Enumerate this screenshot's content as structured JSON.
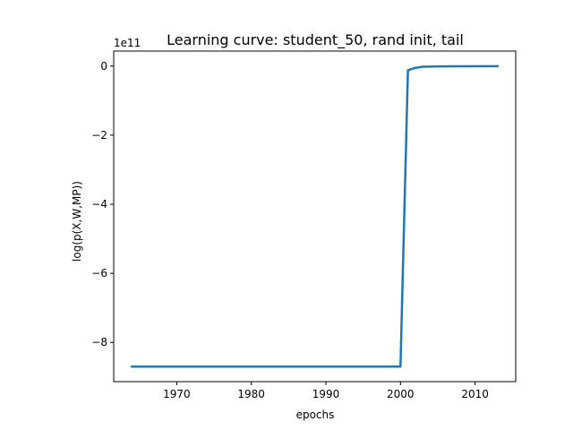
{
  "chart_data": {
    "type": "line",
    "title": "Learning curve: student_50, rand init, tail",
    "xlabel": "epochs",
    "ylabel": "log(p(X,W,MP))",
    "y_offset_label": "1e11",
    "xlim": [
      1961.55,
      2015.45
    ],
    "ylim": [
      -9.135,
      0.435
    ],
    "x_ticks": [
      1970,
      1980,
      1990,
      2000,
      2010
    ],
    "y_ticks": [
      0,
      -2,
      -4,
      -6,
      -8
    ],
    "y_tick_labels": [
      "0",
      "−2",
      "−4",
      "−6",
      "−8"
    ],
    "grid": false,
    "line_color": "#1f77b4",
    "series": [
      {
        "x": [
          1964,
          1970,
          1980,
          1990,
          2000,
          2001,
          2002,
          2003,
          2005,
          2008,
          2013
        ],
        "values": [
          -8.7,
          -8.7,
          -8.7,
          -8.7,
          -8.7,
          -0.12,
          -0.05,
          -0.02,
          -0.01,
          -0.005,
          -0.003
        ]
      }
    ]
  }
}
